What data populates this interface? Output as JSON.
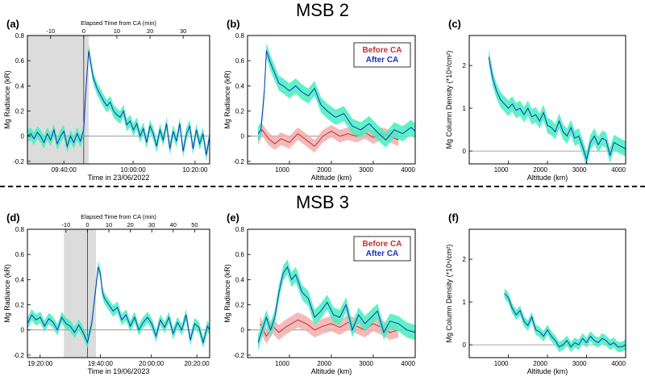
{
  "titles": {
    "top": "MSB 2",
    "bottom": "MSB 3"
  },
  "colors": {
    "after": "#1a2fbf",
    "after_band": "#43f0bd",
    "before": "#c0303a",
    "before_band": "#f2aeae",
    "shade": "#dcdcdc",
    "zero": "#888888"
  },
  "chart_data": [
    {
      "id": "a",
      "panel_label": "(a)",
      "type": "line",
      "ylabel": "Mg Radiance (kR)",
      "xlabel": "Time in 23/06/2022",
      "top_axis_label": "Elapsed Time from CA (min)",
      "top_ticks": [
        "-10",
        "0",
        "10",
        "20",
        "30"
      ],
      "bottom_ticks": [
        "09:40:00",
        "10:00:00",
        "10:20:00"
      ],
      "yticks": [
        "-0.2",
        "0",
        "0.2",
        "0.4",
        "0.6",
        "0.8"
      ],
      "ylim": [
        -0.22,
        0.8
      ],
      "xlim": [
        -17,
        38
      ],
      "shaded_range": [
        -17,
        1.5
      ],
      "ca_marker": 0,
      "series": [
        {
          "name": "After CA",
          "band": 0.05,
          "x": [
            -17,
            -16,
            -15,
            -14,
            -13,
            -12,
            -11,
            -10,
            -9,
            -8,
            -7,
            -6,
            -5,
            -4,
            -3,
            -2,
            -1,
            0,
            0.5,
            1,
            1.5,
            2,
            2.5,
            3,
            3.5,
            4,
            5,
            6,
            7,
            8,
            9,
            10,
            11,
            12,
            13,
            14,
            15,
            16,
            17,
            18,
            19,
            20,
            21,
            22,
            23,
            24,
            25,
            26,
            27,
            28,
            29,
            30,
            31,
            32,
            33,
            34,
            35,
            36,
            37,
            38
          ],
          "y": [
            0.0,
            0.02,
            -0.02,
            0.03,
            0.0,
            -0.05,
            0.02,
            -0.03,
            0.05,
            -0.06,
            0.0,
            0.04,
            -0.08,
            0.0,
            -0.05,
            0.02,
            -0.04,
            0.05,
            0.3,
            0.5,
            0.68,
            0.6,
            0.52,
            0.45,
            0.42,
            0.38,
            0.33,
            0.28,
            0.24,
            0.27,
            0.2,
            0.17,
            0.15,
            0.2,
            0.09,
            0.12,
            0.05,
            0.1,
            0.0,
            0.06,
            -0.05,
            0.08,
            0.02,
            -0.08,
            0.05,
            -0.03,
            0.1,
            -0.1,
            0.04,
            -0.04,
            0.1,
            -0.12,
            0.02,
            0.08,
            -0.1,
            0.05,
            -0.06,
            0.02,
            -0.15,
            0.0
          ]
        }
      ]
    },
    {
      "id": "b",
      "panel_label": "(b)",
      "type": "line",
      "ylabel": "Mg Radiance (kR)",
      "xlabel": "Altitude (km)",
      "xticks": [
        "1000",
        "2000",
        "3000",
        "4000"
      ],
      "yticks": [
        "-0.2",
        "0",
        "0.2",
        "0.4",
        "0.6",
        "0.8"
      ],
      "ylim": [
        -0.22,
        0.8
      ],
      "xlim": [
        0,
        4000
      ],
      "legend": [
        "Before CA",
        "After CA"
      ],
      "series": [
        {
          "name": "Before CA",
          "band": 0.05,
          "x": [
            250,
            350,
            500,
            650,
            800,
            1000,
            1200,
            1400,
            1600,
            1800,
            2000,
            2200,
            2400,
            2600,
            2800,
            3000,
            3200,
            3400,
            3600
          ],
          "y": [
            -0.02,
            0.05,
            -0.02,
            -0.06,
            -0.02,
            -0.05,
            0.02,
            -0.03,
            -0.08,
            0.0,
            0.04,
            0.0,
            0.02,
            0.0,
            0.03,
            -0.01,
            0.02,
            0.0,
            -0.03
          ]
        },
        {
          "name": "After CA",
          "band": 0.06,
          "x": [
            250,
            320,
            400,
            450,
            550,
            650,
            750,
            850,
            1000,
            1150,
            1300,
            1450,
            1600,
            1750,
            1900,
            2100,
            2300,
            2500,
            2700,
            2900,
            3100,
            3300,
            3500,
            3700,
            3900,
            4000
          ],
          "y": [
            0.02,
            0.05,
            0.35,
            0.68,
            0.58,
            0.5,
            0.42,
            0.4,
            0.36,
            0.4,
            0.35,
            0.32,
            0.38,
            0.25,
            0.2,
            0.15,
            0.18,
            0.08,
            0.05,
            0.1,
            0.03,
            -0.03,
            0.05,
            0.02,
            0.07,
            0.04
          ]
        }
      ]
    },
    {
      "id": "c",
      "panel_label": "(c)",
      "type": "line",
      "ylabel": "Mg Column Density (*10⁹/cm²)",
      "xlabel": "Altitude (km)",
      "xticks": [
        "1000",
        "2000",
        "3000",
        "4000"
      ],
      "yticks": [
        "0",
        "1",
        "2"
      ],
      "ylim": [
        -0.3,
        2.7
      ],
      "xlim": [
        0,
        4000
      ],
      "series": [
        {
          "name": "Column density",
          "band": 0.18,
          "x": [
            500,
            600,
            700,
            800,
            900,
            1000,
            1100,
            1200,
            1300,
            1400,
            1500,
            1600,
            1700,
            1800,
            1900,
            2000,
            2100,
            2200,
            2300,
            2400,
            2500,
            2600,
            2700,
            2800,
            2900,
            3000,
            3100,
            3200,
            3300,
            3400,
            3500,
            3600,
            3700,
            3800,
            3900,
            4000
          ],
          "y": [
            2.2,
            1.7,
            1.4,
            1.2,
            1.1,
            1.0,
            1.1,
            0.95,
            1.0,
            0.85,
            1.0,
            0.8,
            0.85,
            0.7,
            0.9,
            0.6,
            0.55,
            0.45,
            0.7,
            0.45,
            0.35,
            0.55,
            0.3,
            0.35,
            0.1,
            -0.2,
            0.2,
            0.35,
            0.15,
            0.3,
            0.25,
            -0.1,
            0.2,
            0.15,
            0.1,
            0.05
          ]
        }
      ]
    },
    {
      "id": "d",
      "panel_label": "(d)",
      "type": "line",
      "ylabel": "Mg Radiance (kR)",
      "xlabel": "Time in 19/06/2023",
      "top_axis_label": "Elapsed Time from CA (min)",
      "top_ticks": [
        "-10",
        "0",
        "10",
        "20",
        "30",
        "40",
        "50"
      ],
      "bottom_ticks": [
        "19:20:00",
        "19:40:00",
        "20:00:00",
        "20:20:00"
      ],
      "yticks": [
        "-0.2",
        "0",
        "0.2",
        "0.4",
        "0.6",
        "0.8"
      ],
      "ylim": [
        -0.22,
        0.8
      ],
      "xlim": [
        -28,
        57
      ],
      "shaded_range": [
        -11,
        4
      ],
      "ca_marker": 0,
      "series": [
        {
          "name": "After CA",
          "band": 0.045,
          "x": [
            -28,
            -26,
            -24,
            -22,
            -20,
            -18,
            -16,
            -14,
            -12,
            -10,
            -8,
            -6,
            -4,
            -2,
            0,
            2,
            3,
            4,
            5,
            6,
            7,
            8,
            10,
            12,
            14,
            16,
            18,
            20,
            22,
            24,
            26,
            28,
            30,
            32,
            34,
            36,
            38,
            40,
            42,
            44,
            46,
            48,
            50,
            52,
            54,
            56,
            57
          ],
          "y": [
            0.05,
            0.12,
            0.08,
            0.1,
            0.03,
            0.09,
            0.06,
            0.0,
            0.1,
            0.05,
            0.03,
            -0.02,
            0.04,
            -0.02,
            -0.1,
            0.05,
            0.2,
            0.35,
            0.5,
            0.45,
            0.3,
            0.25,
            0.2,
            0.15,
            0.18,
            0.08,
            0.12,
            0.03,
            0.1,
            0.0,
            0.06,
            0.1,
            0.05,
            -0.05,
            0.08,
            0.02,
            0.1,
            -0.03,
            0.06,
            0.0,
            0.12,
            -0.08,
            0.05,
            0.02,
            -0.1,
            0.03,
            0.0
          ]
        }
      ]
    },
    {
      "id": "e",
      "panel_label": "(e)",
      "type": "line",
      "ylabel": "Mg Radiance (kR)",
      "xlabel": "Altitude (km)",
      "xticks": [
        "1000",
        "2000",
        "3000",
        "4000"
      ],
      "yticks": [
        "-0.2",
        "0",
        "0.2",
        "0.4",
        "0.6",
        "0.8"
      ],
      "ylim": [
        -0.22,
        0.8
      ],
      "xlim": [
        0,
        4000
      ],
      "legend": [
        "Before CA",
        "After CA"
      ],
      "series": [
        {
          "name": "Before CA",
          "band": 0.06,
          "x": [
            300,
            450,
            600,
            750,
            900,
            1050,
            1200,
            1400,
            1600,
            1800,
            2000,
            2200,
            2400,
            2600,
            2800,
            3000,
            3200,
            3400,
            3600
          ],
          "y": [
            0.05,
            -0.05,
            0.03,
            -0.02,
            0.02,
            0.05,
            0.08,
            0.05,
            0.0,
            0.03,
            0.05,
            0.02,
            0.06,
            0.03,
            0.0,
            0.05,
            0.02,
            -0.02,
            0.0
          ]
        },
        {
          "name": "After CA",
          "band": 0.06,
          "x": [
            250,
            350,
            450,
            550,
            650,
            750,
            850,
            950,
            1050,
            1150,
            1300,
            1450,
            1600,
            1750,
            1900,
            2050,
            2200,
            2350,
            2500,
            2650,
            2800,
            2950,
            3100,
            3250,
            3400,
            3600,
            3800,
            4000
          ],
          "y": [
            -0.1,
            0.0,
            0.1,
            0.0,
            0.1,
            0.3,
            0.45,
            0.5,
            0.4,
            0.44,
            0.3,
            0.25,
            0.1,
            0.15,
            0.22,
            0.12,
            0.1,
            0.2,
            0.0,
            0.12,
            0.05,
            0.1,
            0.15,
            -0.02,
            0.07,
            0.05,
            0.0,
            -0.02
          ]
        }
      ]
    },
    {
      "id": "f",
      "panel_label": "(f)",
      "type": "line",
      "ylabel": "Mg Column Density (*10⁹/cm²)",
      "xlabel": "Altitude (km)",
      "xticks": [
        "1000",
        "2000",
        "3000",
        "4000"
      ],
      "yticks": [
        "0",
        "1",
        "2"
      ],
      "ylim": [
        -0.3,
        2.7
      ],
      "xlim": [
        0,
        4000
      ],
      "series": [
        {
          "name": "Column density",
          "band": 0.12,
          "x": [
            900,
            1000,
            1100,
            1200,
            1300,
            1400,
            1500,
            1600,
            1700,
            1800,
            1900,
            2000,
            2100,
            2200,
            2300,
            2400,
            2500,
            2600,
            2700,
            2800,
            2900,
            3000,
            3100,
            3200,
            3300,
            3400,
            3500,
            3600,
            3700,
            3800,
            3900,
            4000
          ],
          "y": [
            1.2,
            1.1,
            0.85,
            0.7,
            0.8,
            0.55,
            0.45,
            0.65,
            0.35,
            0.3,
            0.2,
            0.35,
            0.2,
            0.1,
            -0.05,
            0.0,
            0.1,
            -0.05,
            0.05,
            0.0,
            0.15,
            0.05,
            0.2,
            0.1,
            0.05,
            0.15,
            0.1,
            0.0,
            0.05,
            -0.05,
            -0.05,
            0.0
          ]
        }
      ]
    }
  ]
}
